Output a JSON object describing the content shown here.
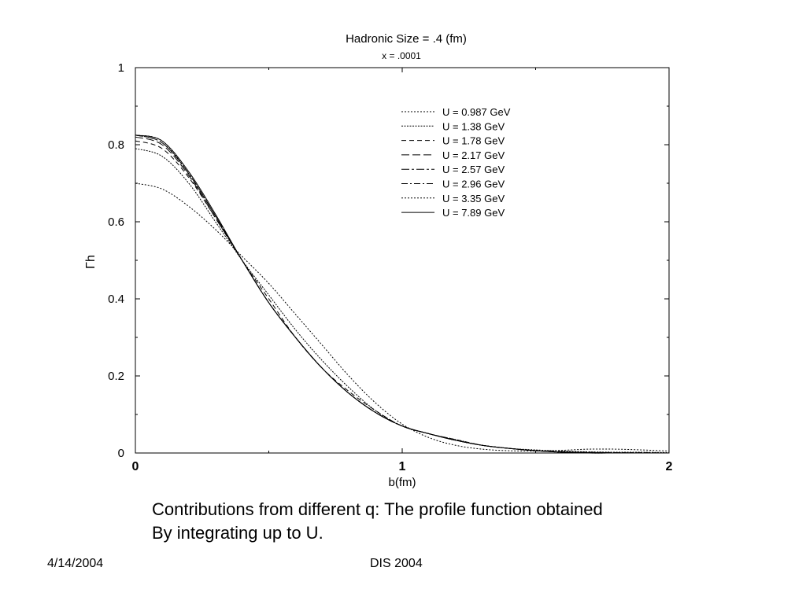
{
  "chart_data": {
    "type": "line",
    "title": "Hadronic Size = .4 (fm)",
    "subtitle": "x = .0001",
    "xlabel": "b(fm)",
    "ylabel": "Γh",
    "xlim": [
      0,
      2
    ],
    "ylim": [
      0,
      1
    ],
    "xticks": [
      "0",
      "1",
      "2"
    ],
    "yticks": [
      "0",
      "0.2",
      "0.4",
      "0.6",
      "0.8",
      "1"
    ],
    "legend_position": "top-right",
    "grid": false,
    "series": [
      {
        "name": "U = 0.987 GeV",
        "dash": "2,2",
        "x": [
          0,
          0.1,
          0.2,
          0.3,
          0.4,
          0.5,
          0.6,
          0.7,
          0.8,
          0.9,
          1.0,
          1.1,
          1.2,
          1.3,
          1.4,
          1.5,
          1.6,
          1.7,
          1.8,
          1.9,
          2.0
        ],
        "y": [
          0.7,
          0.685,
          0.64,
          0.58,
          0.51,
          0.44,
          0.36,
          0.28,
          0.2,
          0.13,
          0.075,
          0.04,
          0.02,
          0.01,
          0.006,
          0.005,
          0.007,
          0.01,
          0.01,
          0.008,
          0.005
        ]
      },
      {
        "name": "U = 1.38 GeV",
        "dash": "2,1.5",
        "x": [
          0,
          0.1,
          0.2,
          0.3,
          0.4,
          0.5,
          0.6,
          0.7,
          0.8,
          0.9,
          1.0,
          1.1,
          1.2,
          1.3,
          1.4,
          1.5,
          1.6,
          1.7,
          1.8,
          1.9,
          2.0
        ],
        "y": [
          0.79,
          0.77,
          0.7,
          0.6,
          0.5,
          0.41,
          0.32,
          0.24,
          0.17,
          0.11,
          0.07,
          0.05,
          0.035,
          0.02,
          0.012,
          0.008,
          0.005,
          0.003,
          0.002,
          0.002,
          0.001
        ]
      },
      {
        "name": "U = 1.78 GeV",
        "dash": "6,4",
        "x": [
          0,
          0.1,
          0.2,
          0.3,
          0.4,
          0.5,
          0.6,
          0.7,
          0.8,
          0.9,
          1.0,
          1.1,
          1.2,
          1.3,
          1.4,
          1.5,
          1.6,
          1.7,
          1.8,
          1.9,
          2.0
        ],
        "y": [
          0.81,
          0.79,
          0.715,
          0.61,
          0.5,
          0.4,
          0.3,
          0.22,
          0.16,
          0.11,
          0.07,
          0.05,
          0.035,
          0.02,
          0.012,
          0.006,
          0.003,
          0.002,
          0.001,
          0.001,
          0.0
        ]
      },
      {
        "name": "U = 2.17 GeV",
        "dash": "10,4",
        "x": [
          0,
          0.1,
          0.2,
          0.3,
          0.4,
          0.5,
          0.6,
          0.7,
          0.8,
          0.9,
          1.0,
          1.1,
          1.2,
          1.3,
          1.4,
          1.5,
          1.6,
          1.7,
          1.8,
          1.9,
          2.0
        ],
        "y": [
          0.82,
          0.8,
          0.72,
          0.61,
          0.5,
          0.39,
          0.3,
          0.22,
          0.155,
          0.105,
          0.07,
          0.05,
          0.033,
          0.02,
          0.012,
          0.006,
          0.003,
          0.001,
          0.001,
          0.0,
          0.0
        ]
      },
      {
        "name": "U = 2.57 GeV",
        "dash": "10,3,3,3",
        "x": [
          0,
          0.1,
          0.2,
          0.3,
          0.4,
          0.5,
          0.6,
          0.7,
          0.8,
          0.9,
          1.0,
          1.1,
          1.2,
          1.3,
          1.4,
          1.5,
          1.6,
          1.7,
          1.8,
          1.9,
          2.0
        ],
        "y": [
          0.825,
          0.805,
          0.725,
          0.615,
          0.5,
          0.39,
          0.3,
          0.22,
          0.155,
          0.105,
          0.07,
          0.05,
          0.033,
          0.02,
          0.012,
          0.006,
          0.003,
          0.001,
          0.0,
          0.0,
          0.0
        ]
      },
      {
        "name": "U = 2.96 GeV",
        "dash": "8,3,2,3",
        "x": [
          0,
          0.1,
          0.2,
          0.3,
          0.4,
          0.5,
          0.6,
          0.7,
          0.8,
          0.9,
          1.0,
          1.1,
          1.2,
          1.3,
          1.4,
          1.5,
          1.6,
          1.7,
          1.8,
          1.9,
          2.0
        ],
        "y": [
          0.825,
          0.805,
          0.725,
          0.615,
          0.5,
          0.39,
          0.3,
          0.22,
          0.155,
          0.105,
          0.07,
          0.05,
          0.033,
          0.02,
          0.012,
          0.006,
          0.002,
          0.001,
          0.0,
          0.0,
          0.0
        ]
      },
      {
        "name": "U = 3.35 GeV",
        "dash": "2,2",
        "x": [
          0,
          0.1,
          0.2,
          0.3,
          0.4,
          0.5,
          0.6,
          0.7,
          0.8,
          0.9,
          1.0,
          1.1,
          1.2,
          1.3,
          1.4,
          1.5,
          1.6,
          1.7,
          1.8,
          1.9,
          2.0
        ],
        "y": [
          0.825,
          0.81,
          0.725,
          0.615,
          0.5,
          0.39,
          0.3,
          0.22,
          0.155,
          0.105,
          0.07,
          0.05,
          0.033,
          0.02,
          0.012,
          0.006,
          0.002,
          0.0,
          0.0,
          0.0,
          0.0
        ]
      },
      {
        "name": "U = 7.89 GeV",
        "dash": "",
        "x": [
          0,
          0.1,
          0.2,
          0.3,
          0.4,
          0.5,
          0.6,
          0.7,
          0.8,
          0.9,
          1.0,
          1.1,
          1.2,
          1.3,
          1.4,
          1.5,
          1.6,
          1.7,
          1.8,
          1.9,
          2.0
        ],
        "y": [
          0.825,
          0.81,
          0.73,
          0.62,
          0.5,
          0.39,
          0.3,
          0.22,
          0.155,
          0.105,
          0.07,
          0.05,
          0.033,
          0.02,
          0.012,
          0.006,
          0.002,
          0.0,
          0.0,
          0.0,
          0.0
        ]
      }
    ]
  },
  "caption": {
    "line1": "Contributions from different q:  The profile function obtained",
    "line2": "By integrating up to U."
  },
  "footer": {
    "date": "4/14/2004",
    "event": "DIS 2004"
  }
}
